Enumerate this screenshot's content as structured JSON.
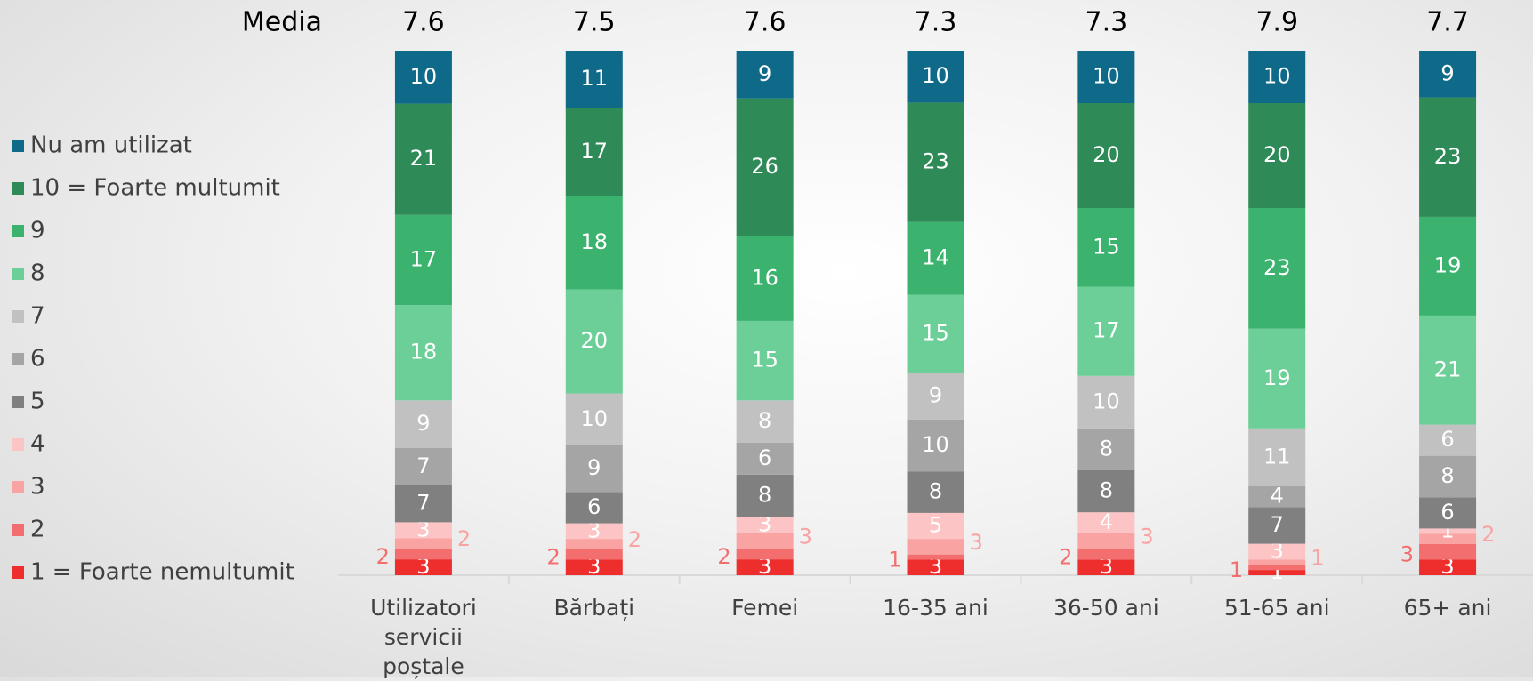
{
  "chart_data": {
    "type": "stacked-bar-100",
    "mean_label": "Media",
    "means": [
      7.6,
      7.5,
      7.6,
      7.3,
      7.3,
      7.9,
      7.7
    ],
    "categories": [
      "Utilizatori servicii poștale",
      "Bărbați",
      "Femei",
      "16-35 ani",
      "36-50 ani",
      "51-65 ani",
      "65+ ani"
    ],
    "series": [
      {
        "name": "1 = Foarte nemultumit",
        "color": "#ee2d2d",
        "label_position": "inside",
        "values": [
          3,
          3,
          3,
          3,
          3,
          1,
          3
        ]
      },
      {
        "name": "2",
        "color": "#f36f6f",
        "label_position": "left",
        "values": [
          2,
          2,
          2,
          1,
          2,
          1,
          3
        ]
      },
      {
        "name": "3",
        "color": "#f9a3a3",
        "label_position": "right",
        "values": [
          2,
          2,
          3,
          3,
          3,
          1,
          2
        ]
      },
      {
        "name": "4",
        "color": "#fcc4c4",
        "label_position": "inside",
        "values": [
          3,
          3,
          3,
          5,
          4,
          3,
          1
        ]
      },
      {
        "name": "5",
        "color": "#808080",
        "label_position": "inside",
        "values": [
          7,
          6,
          8,
          8,
          8,
          7,
          6
        ]
      },
      {
        "name": "6",
        "color": "#a5a5a5",
        "label_position": "inside",
        "values": [
          7,
          9,
          6,
          10,
          8,
          4,
          8
        ]
      },
      {
        "name": "7",
        "color": "#c1c1c1",
        "label_position": "inside",
        "values": [
          9,
          10,
          8,
          9,
          10,
          11,
          6
        ]
      },
      {
        "name": "8",
        "color": "#6ccf98",
        "label_position": "inside",
        "values": [
          18,
          20,
          15,
          15,
          17,
          19,
          21
        ]
      },
      {
        "name": "9",
        "color": "#3bb36e",
        "label_position": "inside",
        "values": [
          17,
          18,
          16,
          14,
          15,
          23,
          19
        ]
      },
      {
        "name": "10 = Foarte multumit",
        "color": "#2e8b57",
        "label_position": "inside",
        "values": [
          21,
          17,
          26,
          23,
          20,
          20,
          23
        ]
      },
      {
        "name": "Nu am utilizat",
        "color": "#0f6a8a",
        "label_position": "inside",
        "values": [
          10,
          11,
          9,
          10,
          10,
          10,
          9
        ]
      }
    ]
  }
}
